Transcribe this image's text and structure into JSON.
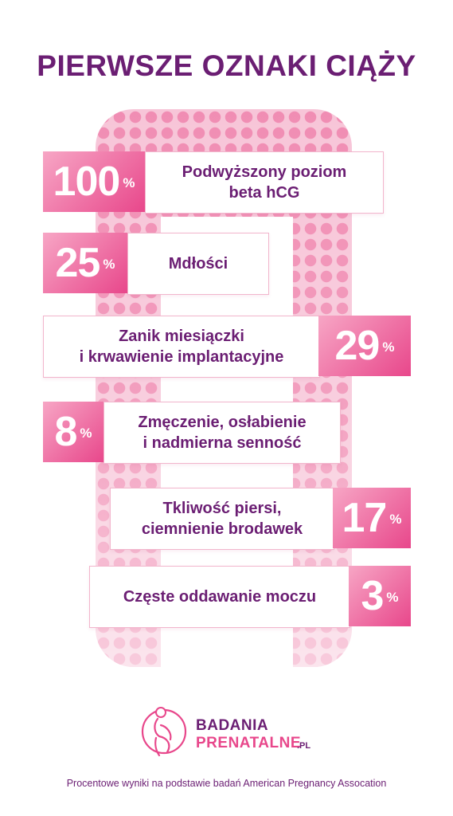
{
  "title": "PIERWSZE OZNAKI CIĄŻY",
  "colors": {
    "title": "#6b1e73",
    "accent": "#e8478b",
    "pattern": "#f7c5d8"
  },
  "items": [
    {
      "value": "100",
      "unit": "%",
      "line1": "Podwyższony poziom",
      "line2": "beta hCG"
    },
    {
      "value": "25",
      "unit": "%",
      "line1": "Mdłości",
      "line2": ""
    },
    {
      "value": "29",
      "unit": "%",
      "line1": "Zanik miesiączki",
      "line2": "i krwawienie implantacyjne"
    },
    {
      "value": "8",
      "unit": "%",
      "line1": "Zmęczenie, osłabienie",
      "line2": "i nadmierna senność"
    },
    {
      "value": "17",
      "unit": "%",
      "line1": "Tkliwość piersi,",
      "line2": "ciemnienie brodawek"
    },
    {
      "value": "3",
      "unit": "%",
      "line1": "Częste oddawanie moczu",
      "line2": ""
    }
  ],
  "brand": {
    "line1": "BADANIA",
    "line2": "PRENATALNE",
    "suffix": ".PL",
    "icon": "pregnant-woman-icon"
  },
  "footer": "Procentowe wyniki na podstawie badań American Pregnancy Assocation"
}
